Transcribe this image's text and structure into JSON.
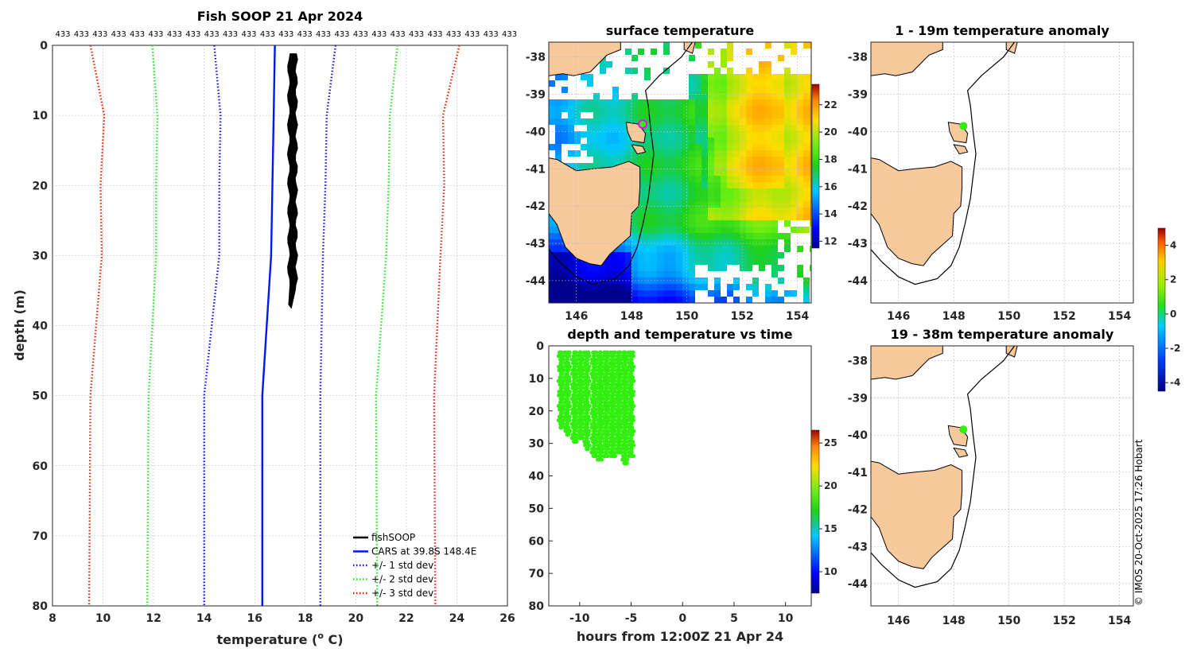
{
  "colors": {
    "land": "#f8c99a",
    "fishSOOP": "#000000",
    "cars": "#0018ee",
    "std1": "#1010ee",
    "std2": "#33dd33",
    "std3": "#ee2200",
    "profile_points": "#33ee11",
    "marker_fill": "#33ee11",
    "marker_edge": "#ff00ff"
  },
  "copyright": "© IMOS 20-Oct-2025 17:26 Hobart",
  "chart_data": [
    {
      "id": "profile",
      "type": "line",
      "title": "Fish SOOP 21 Apr 2024",
      "xlabel": "temperature (o C)",
      "xlabel_main": "temperature (",
      "xlabel_sup": "o",
      "xlabel_tail": " C)",
      "ylabel": "depth (m)",
      "xlim": [
        8,
        26
      ],
      "ylim": [
        0,
        80
      ],
      "x_ticks": [
        "8",
        "10",
        "12",
        "14",
        "16",
        "18",
        "20",
        "22",
        "24",
        "26"
      ],
      "y_ticks": [
        "0",
        "10",
        "20",
        "30",
        "40",
        "50",
        "60",
        "70",
        "80"
      ],
      "top_labels": [
        "433",
        "433",
        "433",
        "433",
        "433",
        "433",
        "433",
        "433",
        "433",
        "433",
        "433",
        "433",
        "433",
        "433",
        "433",
        "433",
        "433",
        "433",
        "433",
        "433",
        "433",
        "433",
        "433",
        "433",
        "433"
      ],
      "cars_depth": [
        0,
        10,
        20,
        30,
        50,
        80
      ],
      "cars_temp": [
        16.8,
        16.75,
        16.7,
        16.65,
        16.3,
        16.3
      ],
      "std1_offsets": [
        2.4,
        2.1,
        2.1,
        2.05,
        2.3,
        2.3
      ],
      "std2_offsets": [
        4.85,
        4.6,
        4.6,
        4.55,
        4.5,
        4.55
      ],
      "std3_offsets": [
        7.3,
        6.7,
        6.8,
        6.7,
        6.8,
        6.85
      ],
      "fishsoop_band": {
        "depth_top": 1.2,
        "depth_bottom": 37.5,
        "temp_min": 17.35,
        "temp_max": 17.65
      },
      "legend": [
        {
          "label": "fishSOOP",
          "style": "solid",
          "color_key": "fishSOOP"
        },
        {
          "label": "CARS at 39.8S 148.4E",
          "style": "solid",
          "color_key": "cars"
        },
        {
          "label": "+/- 1 std dev",
          "style": "dotted",
          "color_key": "std1"
        },
        {
          "label": "+/- 2 std dev",
          "style": "dotted",
          "color_key": "std2"
        },
        {
          "label": "+/- 3 std dev",
          "style": "dotted",
          "color_key": "std3"
        }
      ]
    },
    {
      "id": "sst",
      "type": "heatmap",
      "title": "surface temperature",
      "x_ticks": [
        "146",
        "148",
        "150",
        "152",
        "154"
      ],
      "y_ticks": [
        "-38",
        "-39",
        "-40",
        "-41",
        "-42",
        "-43",
        "-44"
      ],
      "lon_range": [
        145,
        154.5
      ],
      "lat_range": [
        -44.6,
        -37.6
      ],
      "colorbar_ticks": [
        "12",
        "14",
        "16",
        "18",
        "20",
        "22"
      ],
      "colorbar_range": [
        11.5,
        23.5
      ],
      "marker": {
        "lat": -39.8,
        "lon": 148.4
      }
    },
    {
      "id": "depth_time",
      "type": "scatter",
      "title": "depth and temperature vs time",
      "xlabel": "hours from 12:00Z 21 Apr 24",
      "xlim": [
        -13,
        12.5
      ],
      "ylim": [
        0,
        80
      ],
      "x_ticks": [
        "-10",
        "-5",
        "0",
        "5",
        "10"
      ],
      "y_ticks": [
        "0",
        "10",
        "20",
        "30",
        "40",
        "50",
        "60",
        "70",
        "80"
      ],
      "colorbar_ticks": [
        "10",
        "15",
        "20",
        "25"
      ],
      "colorbar_range": [
        7.5,
        26.5
      ],
      "casts": [
        {
          "t": -11.8,
          "max_depth": 26
        },
        {
          "t": -11.2,
          "max_depth": 28
        },
        {
          "t": -10.5,
          "max_depth": 30
        },
        {
          "t": -9.9,
          "max_depth": 29
        },
        {
          "t": -9.3,
          "max_depth": 32
        },
        {
          "t": -8.6,
          "max_depth": 34
        },
        {
          "t": -8.0,
          "max_depth": 36
        },
        {
          "t": -7.4,
          "max_depth": 35
        },
        {
          "t": -6.8,
          "max_depth": 34
        },
        {
          "t": -6.2,
          "max_depth": 33
        },
        {
          "t": -5.6,
          "max_depth": 37
        },
        {
          "t": -5.0,
          "max_depth": 35
        }
      ]
    },
    {
      "id": "anom1",
      "type": "heatmap",
      "title": "1 - 19m temperature anomaly",
      "x_ticks": [
        "146",
        "148",
        "150",
        "152",
        "154"
      ],
      "y_ticks": [
        "-38",
        "-39",
        "-40",
        "-41",
        "-42",
        "-43",
        "-44"
      ],
      "marker": {
        "lat": -39.85,
        "lon": 148.35
      }
    },
    {
      "id": "anom2",
      "type": "heatmap",
      "title": "19 - 38m temperature anomaly",
      "x_ticks": [
        "146",
        "148",
        "150",
        "152",
        "154"
      ],
      "y_ticks": [
        "-38",
        "-39",
        "-40",
        "-41",
        "-42",
        "-43",
        "-44"
      ],
      "marker": {
        "lat": -39.85,
        "lon": 148.35
      }
    },
    {
      "id": "anom_colorbar",
      "type": "heatmap",
      "colorbar_ticks": [
        "4",
        "2",
        "0",
        "-2",
        "-4"
      ],
      "colorbar_range": [
        -4.5,
        5
      ]
    }
  ]
}
